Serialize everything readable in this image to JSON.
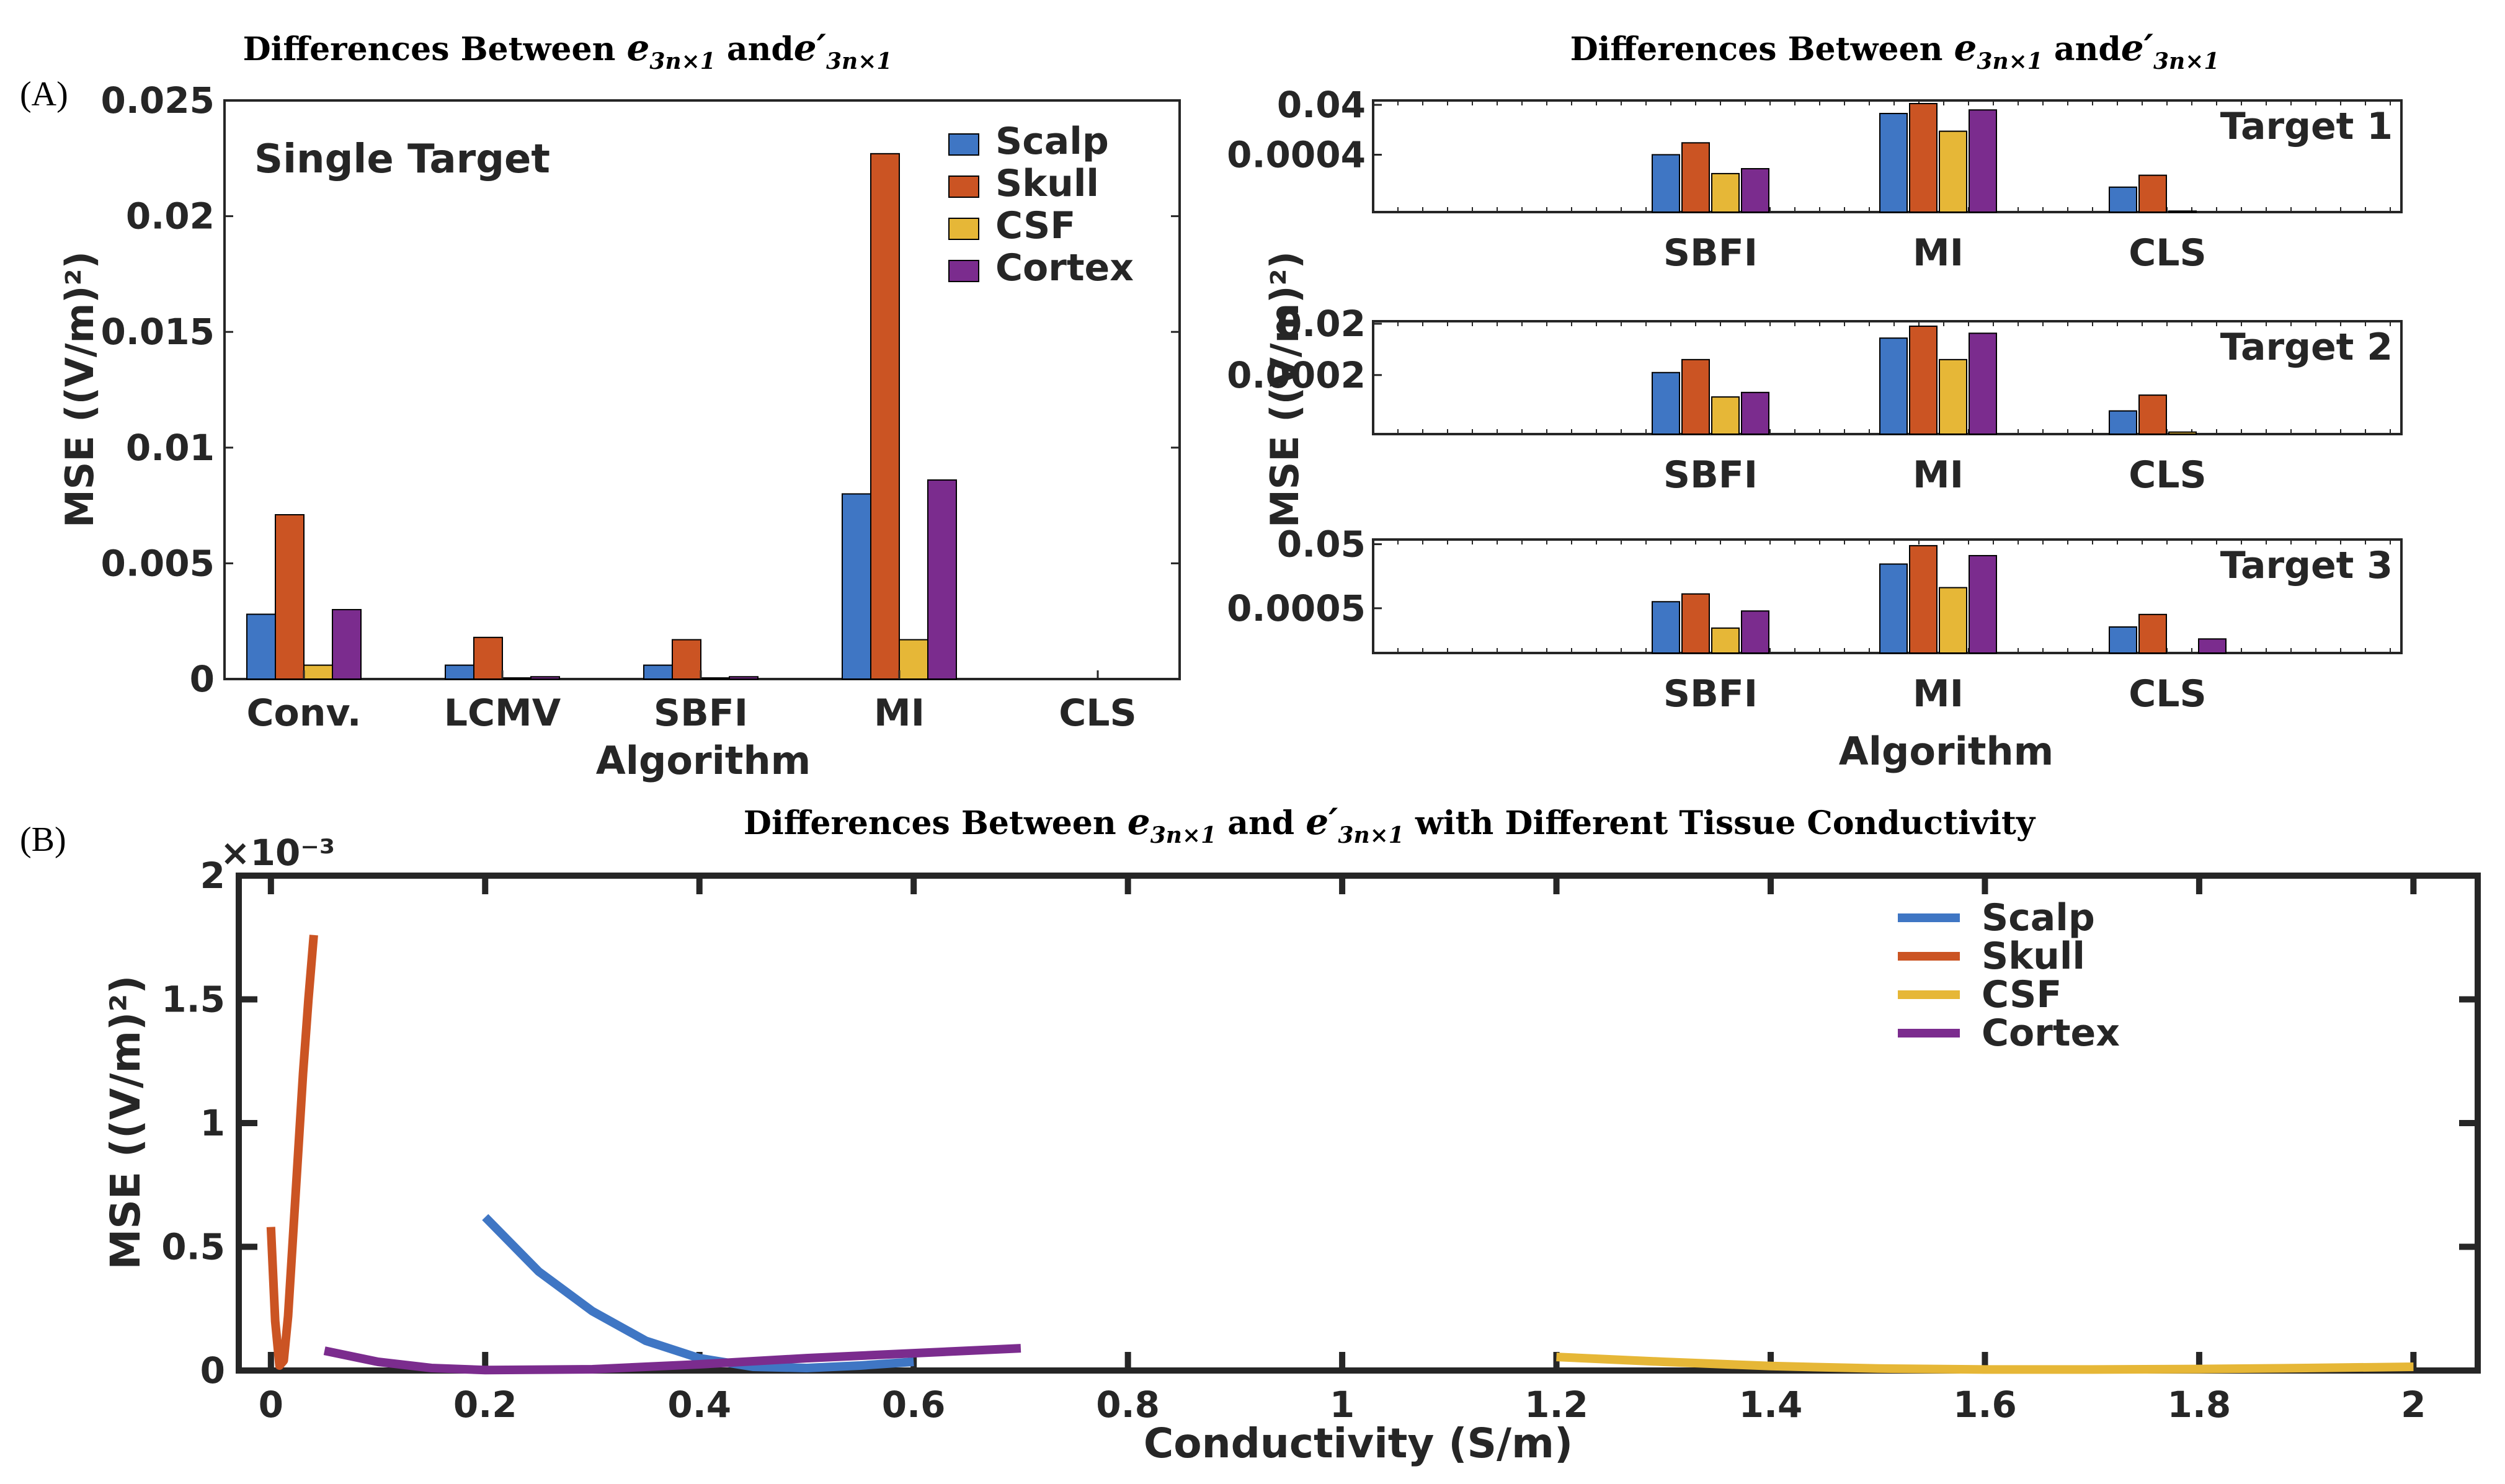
{
  "colors": {
    "scalp": "#3F76C4",
    "skull": "#CB5423",
    "csf": "#E6B737",
    "cortex": "#7B2C8E",
    "axis": "#262626"
  },
  "panel_a_label": "(A)",
  "panel_b_label": "(B)",
  "chart_data": [
    {
      "type": "bar",
      "title_main": "Differences Between e3n×1 and e′3n×1",
      "title_parts": [
        "Differences Between ",
        "e",
        "3n×1",
        " and",
        "e′",
        "3n×1"
      ],
      "inner_label": "Single Target",
      "xlabel": "Algorithm",
      "ylabel": "MSE ((V/m)²)",
      "ylim": [
        0,
        0.025
      ],
      "yticks": [
        0,
        0.005,
        0.01,
        0.015,
        0.02,
        0.025
      ],
      "ytick_labels": [
        "0",
        "0.005",
        "0.01",
        "0.015",
        "0.02",
        "0.025"
      ],
      "categories": [
        "Conv.",
        "LCMV",
        "SBFI",
        "MI",
        "CLS"
      ],
      "series": [
        {
          "name": "Scalp",
          "values": [
            0.0028,
            0.0006,
            0.0006,
            0.008,
            0.0
          ]
        },
        {
          "name": "Skull",
          "values": [
            0.0071,
            0.0018,
            0.0017,
            0.0227,
            0.0
          ]
        },
        {
          "name": "CSF",
          "values": [
            0.0006,
            5e-05,
            5e-05,
            0.0017,
            0.0
          ]
        },
        {
          "name": "Cortex",
          "values": [
            0.003,
            0.0001,
            0.0001,
            0.0086,
            0.0
          ]
        }
      ],
      "legend": [
        "Scalp",
        "Skull",
        "CSF",
        "Cortex"
      ],
      "legend_position": "top-right"
    },
    {
      "type": "bar",
      "title_parts": [
        "Differences Between ",
        "e",
        "3n×1",
        " and",
        "e′",
        "3n×1"
      ],
      "ylabel": "MSE ((V/m)²)",
      "xlabel": "Algorithm",
      "scale": "log",
      "subplots": [
        {
          "label": "Target 1",
          "ylim": [
            2e-06,
            0.06
          ],
          "yticks": [
            0.04,
            0.0004
          ],
          "ytick_labels": [
            "0.04",
            "0.0004"
          ],
          "categories": [
            "SBFI",
            "MI",
            "CLS"
          ],
          "series": [
            {
              "name": "Scalp",
              "values": [
                0.0004,
                0.018,
                2e-05
              ]
            },
            {
              "name": "Skull",
              "values": [
                0.0012,
                0.045,
                6e-05
              ]
            },
            {
              "name": "CSF",
              "values": [
                7e-05,
                0.0035,
                2.2e-06
              ]
            },
            {
              "name": "Cortex",
              "values": [
                0.00011,
                0.025,
                2e-06
              ]
            }
          ]
        },
        {
          "label": "Target 2",
          "ylim": [
            1e-06,
            0.025
          ],
          "yticks": [
            0.02,
            0.0002
          ],
          "ytick_labels": [
            "0.02",
            "0.0002"
          ],
          "categories": [
            "SBFI",
            "MI",
            "CLS"
          ],
          "series": [
            {
              "name": "Scalp",
              "values": [
                0.00025,
                0.0055,
                8e-06
              ]
            },
            {
              "name": "Skull",
              "values": [
                0.0008,
                0.016,
                3.3e-05
              ]
            },
            {
              "name": "CSF",
              "values": [
                2.8e-05,
                0.0008,
                1.2e-06
              ]
            },
            {
              "name": "Cortex",
              "values": [
                4.2e-05,
                0.0085,
                1e-06
              ]
            }
          ]
        },
        {
          "label": "Target 3",
          "ylim": [
            2e-05,
            0.07
          ],
          "yticks": [
            0.05,
            0.0005
          ],
          "ytick_labels": [
            "0.05",
            "0.0005"
          ],
          "categories": [
            "SBFI",
            "MI",
            "CLS"
          ],
          "series": [
            {
              "name": "Scalp",
              "values": [
                0.0008,
                0.012,
                0.00013
              ]
            },
            {
              "name": "Skull",
              "values": [
                0.0014,
                0.045,
                0.00032
              ]
            },
            {
              "name": "CSF",
              "values": [
                0.00012,
                0.0022,
                2e-05
              ]
            },
            {
              "name": "Cortex",
              "values": [
                0.00041,
                0.022,
                5.5e-05
              ]
            }
          ]
        }
      ]
    },
    {
      "type": "line",
      "title_parts": [
        "Differences Between ",
        "e",
        "3n×1",
        " and ",
        "e′",
        "3n×1",
        " with Different Tissue Conductivity"
      ],
      "xlabel": "Conductivity (S/m)",
      "ylabel": "MSE ((V/m)²)",
      "y_multiplier": "×10⁻³",
      "xlim": [
        -0.03,
        2.06
      ],
      "ylim": [
        0,
        2
      ],
      "xticks": [
        0,
        0.2,
        0.4,
        0.6,
        0.8,
        1,
        1.2,
        1.4,
        1.6,
        1.8,
        2
      ],
      "xtick_labels": [
        "0",
        "0.2",
        "0.4",
        "0.6",
        "0.8",
        "1",
        "1.2",
        "1.4",
        "1.6",
        "1.8",
        "2"
      ],
      "yticks": [
        0,
        0.5,
        1,
        1.5,
        2
      ],
      "ytick_labels": [
        "0",
        "0.5",
        "1",
        "1.5",
        "2"
      ],
      "series": [
        {
          "name": "Scalp",
          "x": [
            0.2,
            0.25,
            0.3,
            0.35,
            0.4,
            0.45,
            0.5,
            0.55,
            0.6
          ],
          "y": [
            0.62,
            0.4,
            0.24,
            0.12,
            0.05,
            0.015,
            0.01,
            0.02,
            0.035
          ]
        },
        {
          "name": "Skull",
          "x": [
            0.0,
            0.004,
            0.008,
            0.012,
            0.016,
            0.02,
            0.025,
            0.03,
            0.035,
            0.04
          ],
          "y": [
            0.58,
            0.2,
            0.02,
            0.04,
            0.22,
            0.5,
            0.85,
            1.2,
            1.5,
            1.76
          ]
        },
        {
          "name": "CSF",
          "x": [
            1.2,
            1.3,
            1.4,
            1.5,
            1.6,
            1.7,
            1.8,
            1.9,
            2.0
          ],
          "y": [
            0.055,
            0.035,
            0.018,
            0.008,
            0.004,
            0.004,
            0.006,
            0.01,
            0.015
          ]
        },
        {
          "name": "Cortex",
          "x": [
            0.05,
            0.1,
            0.15,
            0.2,
            0.3,
            0.4,
            0.5,
            0.6,
            0.7
          ],
          "y": [
            0.08,
            0.035,
            0.01,
            0.002,
            0.005,
            0.025,
            0.05,
            0.07,
            0.09
          ]
        }
      ],
      "legend": [
        "Scalp",
        "Skull",
        "CSF",
        "Cortex"
      ],
      "legend_position": "top-right"
    }
  ]
}
